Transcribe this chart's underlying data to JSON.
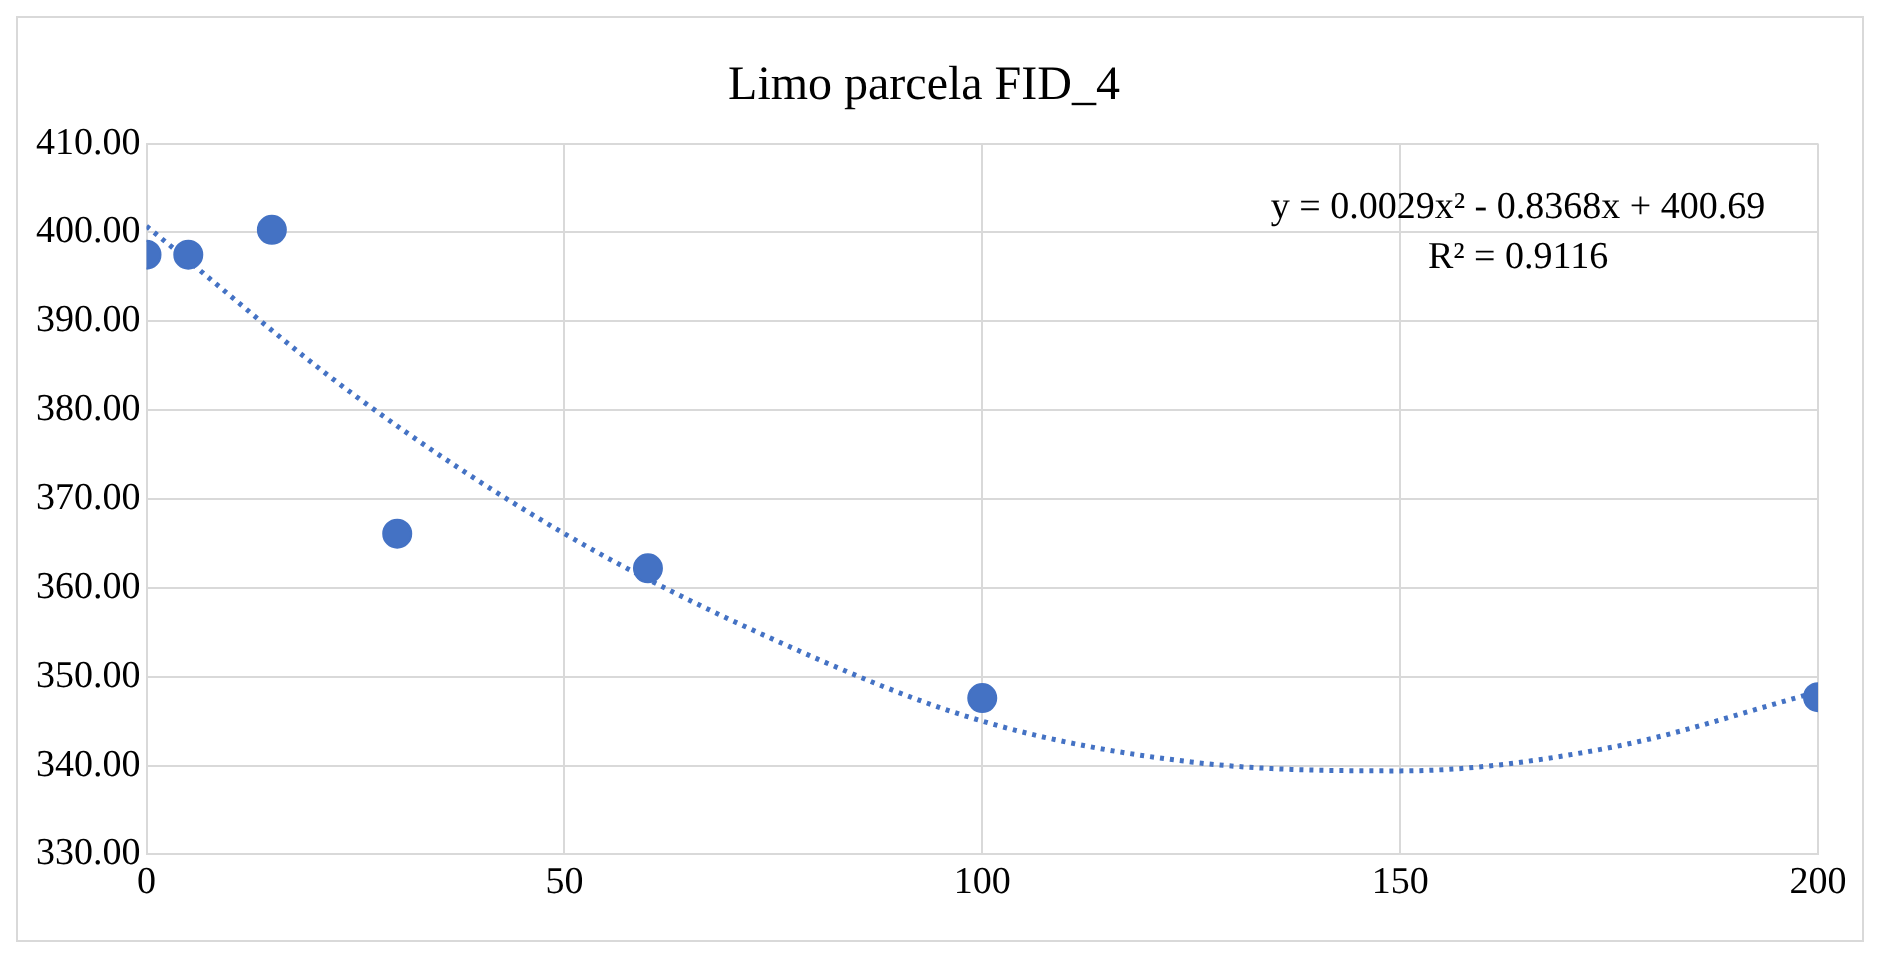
{
  "chart_data": {
    "type": "scatter",
    "title": "Limo parcela FID_4",
    "series": [
      {
        "color": "#4472c4",
        "x": [
          0,
          5,
          15,
          30,
          60,
          100,
          200
        ],
        "values": [
          397.5,
          397.5,
          400.3,
          366.1,
          362.2,
          347.6,
          347.7
        ]
      },
      {
        "type": "line",
        "color": "#4472c4",
        "line_style": "dotted",
        "marker": "none",
        "x": [
          0,
          25,
          50,
          75,
          100,
          125,
          150,
          175,
          200
        ],
        "values": [
          400.7,
          381.6,
          366.1,
          354.2,
          345.0,
          340.4,
          339.4,
          342.0,
          348.3
        ]
      }
    ],
    "xlim": [
      0,
      200
    ],
    "xticks": [
      0,
      50,
      100,
      150,
      200
    ],
    "ylim": [
      330,
      410
    ],
    "yticks": [
      {
        "value": 330,
        "label": "330.00"
      },
      {
        "value": 340,
        "label": "340.00"
      },
      {
        "value": 350,
        "label": "350.00"
      },
      {
        "value": 360,
        "label": "360.00"
      },
      {
        "value": 370,
        "label": "370.00"
      },
      {
        "value": 380,
        "label": "380.00"
      },
      {
        "value": 390,
        "label": "390.00"
      },
      {
        "value": 400,
        "label": "400.00"
      },
      {
        "value": 410,
        "label": "410.00"
      }
    ],
    "grid": true,
    "marker": "circle",
    "annotations": [
      "y = 0.0029x² - 0.8368x + 400.69",
      "R² = 0.9116"
    ]
  }
}
